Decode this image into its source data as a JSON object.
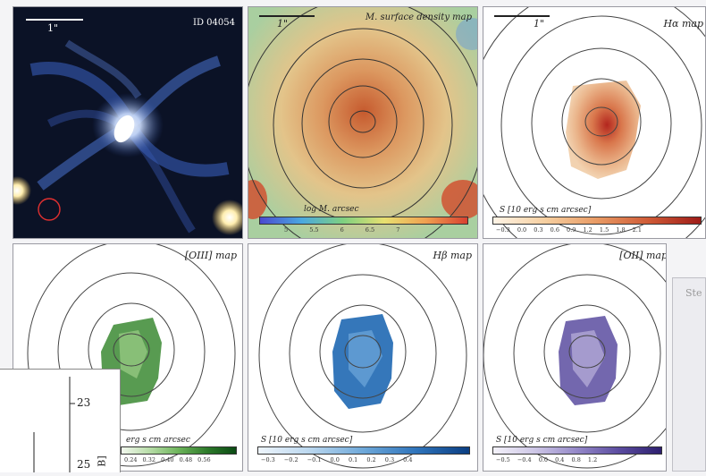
{
  "panels": [
    {
      "id": "p1",
      "id_label": "ID 04054",
      "scale_label": "1\""
    },
    {
      "id": "p2",
      "title": "M. surface density map",
      "scale_label": "1\"",
      "cbar_label": "log M. arcsec",
      "ticks": "5   5.5   6   6.5   7"
    },
    {
      "id": "p3",
      "title": "Hα map",
      "scale_label": "1\"",
      "cbar_label": "S [10 erg s cm arcsec]",
      "ticks": "−0.3 0.0 0.3 0.6 0.9 1.2 1.5 1.8 2.1"
    },
    {
      "id": "p4",
      "title": "[OIII] map",
      "cbar_label": "erg s cm arcsec",
      "ticks": "0.24 0.32 0.40 0.48 0.56"
    },
    {
      "id": "p5",
      "title": "Hβ map",
      "cbar_label": "S [10 erg s cm arcsec]",
      "ticks": "−0.3 −0.2 −0.1 0.0 0.1 0.2 0.3 0.4"
    },
    {
      "id": "p6",
      "title": "[OII] map",
      "cbar_label": "S [10 erg s cm arcsec]",
      "ticks": "−0.5  −0.4  0.0  0.4  0.8  1.2"
    }
  ],
  "side_panel": {
    "label": "Ste"
  },
  "inset": {
    "tick_value": "23",
    "tick_value_2": "25",
    "axis_label": "B]"
  },
  "colors": {
    "bg": "#f4f4f6",
    "ha_dark": "#b3261e",
    "oiii_green": "#3b8a32",
    "hb_blue": "#1f68b3",
    "oii_purple": "#5b4ca0"
  }
}
